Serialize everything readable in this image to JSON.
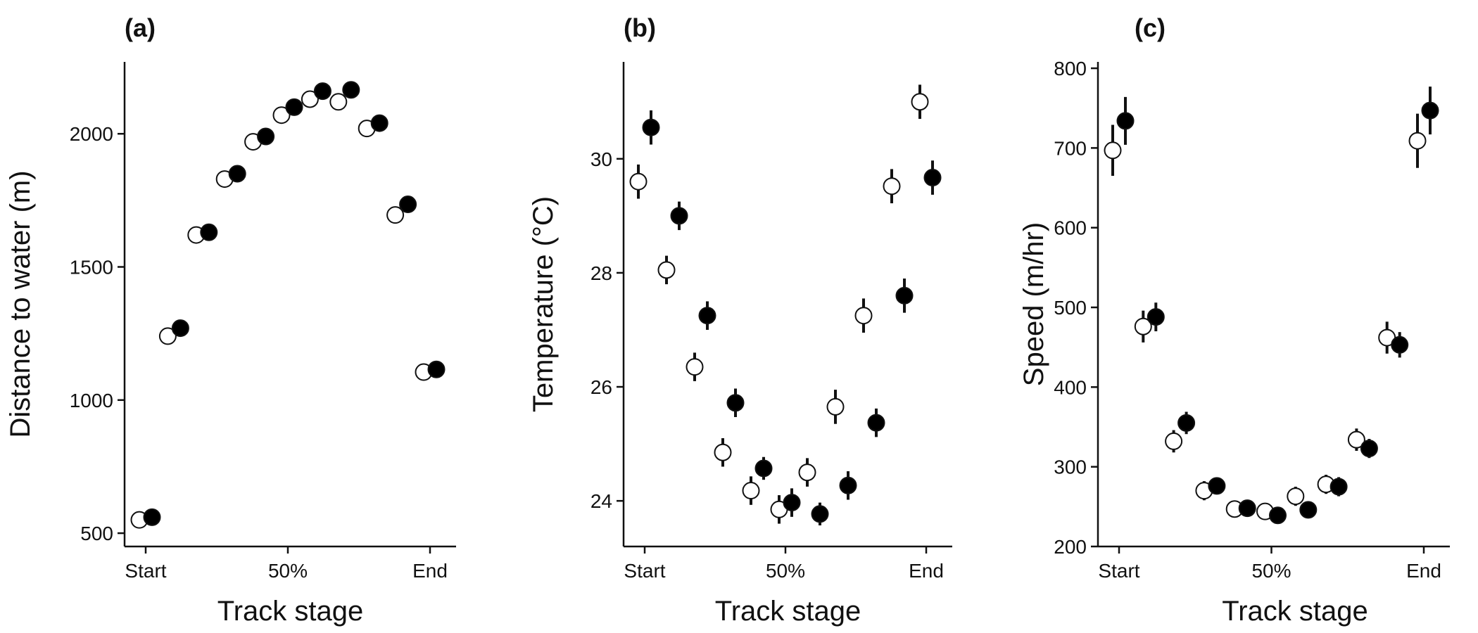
{
  "chart_data": [
    {
      "type": "scatter",
      "panel_label": "(a)",
      "xlabel": "Track stage",
      "ylabel": "Distance to water (m)",
      "x_ticks": [
        "Start",
        "50%",
        "End"
      ],
      "x": [
        0,
        10,
        20,
        30,
        40,
        50,
        60,
        70,
        80,
        90,
        100
      ],
      "ylim": [
        450,
        2270
      ],
      "y_ticks": [
        500,
        1000,
        1500,
        2000
      ],
      "grid": false,
      "legend": "none",
      "series": [
        {
          "marker": "open-circle",
          "color": "#ffffff",
          "values": [
            550,
            1240,
            1620,
            1830,
            1970,
            2070,
            2130,
            2120,
            2020,
            1695,
            1105
          ],
          "err": [
            15,
            18,
            20,
            22,
            25,
            28,
            30,
            30,
            25,
            22,
            15
          ]
        },
        {
          "marker": "filled-circle",
          "color": "#000000",
          "values": [
            560,
            1270,
            1630,
            1850,
            1990,
            2100,
            2160,
            2165,
            2040,
            1735,
            1115
          ],
          "err": [
            15,
            18,
            20,
            22,
            25,
            28,
            30,
            30,
            25,
            22,
            15
          ]
        }
      ]
    },
    {
      "type": "scatter",
      "panel_label": "(b)",
      "xlabel": "Track stage",
      "ylabel": "Temperature (°C)",
      "x_ticks": [
        "Start",
        "50%",
        "End"
      ],
      "x": [
        0,
        10,
        20,
        30,
        40,
        50,
        60,
        70,
        80,
        90,
        100
      ],
      "ylim": [
        23.2,
        31.7
      ],
      "y_ticks": [
        24,
        26,
        28,
        30
      ],
      "grid": false,
      "legend": "none",
      "series": [
        {
          "marker": "open-circle",
          "color": "#ffffff",
          "values": [
            29.6,
            28.05,
            26.35,
            24.85,
            24.18,
            23.85,
            24.5,
            25.65,
            27.25,
            29.52,
            31.0
          ],
          "err": [
            0.3,
            0.25,
            0.25,
            0.25,
            0.25,
            0.25,
            0.25,
            0.3,
            0.3,
            0.3,
            0.3
          ]
        },
        {
          "marker": "filled-circle",
          "color": "#000000",
          "values": [
            30.55,
            29.0,
            27.25,
            25.72,
            24.57,
            23.97,
            23.77,
            24.27,
            25.37,
            27.6,
            29.67
          ],
          "err": [
            0.3,
            0.25,
            0.25,
            0.25,
            0.2,
            0.25,
            0.2,
            0.25,
            0.25,
            0.3,
            0.3
          ]
        }
      ]
    },
    {
      "type": "scatter",
      "panel_label": "(c)",
      "xlabel": "Track stage",
      "ylabel": "Speed (m/hr)",
      "x_ticks": [
        "Start",
        "50%",
        "End"
      ],
      "x": [
        0,
        10,
        20,
        30,
        40,
        50,
        60,
        70,
        80,
        90,
        100
      ],
      "ylim": [
        200,
        808
      ],
      "y_ticks": [
        200,
        300,
        400,
        500,
        600,
        700,
        800
      ],
      "grid": false,
      "legend": "none",
      "series": [
        {
          "marker": "open-circle",
          "color": "#ffffff",
          "values": [
            697,
            476,
            332,
            270,
            247,
            244,
            263,
            278,
            334,
            462,
            709
          ],
          "err": [
            32,
            20,
            14,
            12,
            10,
            10,
            12,
            12,
            14,
            20,
            34
          ]
        },
        {
          "marker": "filled-circle",
          "color": "#000000",
          "values": [
            734,
            488,
            355,
            276,
            248,
            239,
            246,
            275,
            323,
            453,
            747
          ],
          "err": [
            30,
            18,
            14,
            10,
            10,
            10,
            10,
            12,
            12,
            16,
            30
          ]
        }
      ]
    }
  ]
}
